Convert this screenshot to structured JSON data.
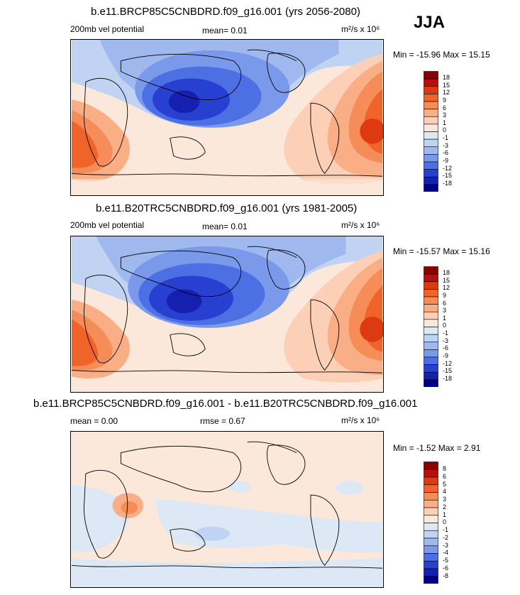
{
  "season": "JJA",
  "panels": [
    {
      "title": "b.e11.BRCP85C5CNBDRD.f09_g16.001 (yrs 2056-2080)",
      "left_label": "200mb vel potential",
      "mean_label": "mean=  0.01",
      "units": "m²/s x 10⁶",
      "minmax": "Min = -15.96 Max =  15.15",
      "colorbar": {
        "labels": [
          "18",
          "15",
          "12",
          "9",
          "6",
          "3",
          "1",
          "0",
          "-1",
          "-3",
          "-6",
          "-9",
          "-12",
          "-15",
          "-18"
        ],
        "colors": [
          "#8b0000",
          "#b50f0f",
          "#dd3a12",
          "#f0642a",
          "#f68c57",
          "#f9ae85",
          "#fbd0b7",
          "#fbe8da",
          "#dde8f6",
          "#c0d3f2",
          "#9fb8ee",
          "#7a99ea",
          "#4d6fe4",
          "#2740d2",
          "#1520b0",
          "#000080"
        ]
      }
    },
    {
      "title": "b.e11.B20TRC5CNBDRD.f09_g16.001 (yrs 1981-2005)",
      "left_label": "200mb vel potential",
      "mean_label": "mean=  0.01",
      "units": "m²/s x 10⁶",
      "minmax": "Min = -15.57 Max =  15.16",
      "colorbar": {
        "labels": [
          "18",
          "15",
          "12",
          "9",
          "6",
          "3",
          "1",
          "0",
          "-1",
          "-3",
          "-6",
          "-9",
          "-12",
          "-15",
          "-18"
        ],
        "colors": [
          "#8b0000",
          "#b50f0f",
          "#dd3a12",
          "#f0642a",
          "#f68c57",
          "#f9ae85",
          "#fbd0b7",
          "#fbe8da",
          "#dde8f6",
          "#c0d3f2",
          "#9fb8ee",
          "#7a99ea",
          "#4d6fe4",
          "#2740d2",
          "#1520b0",
          "#000080"
        ]
      }
    },
    {
      "title": "b.e11.BRCP85C5CNBDRD.f09_g16.001 - b.e11.B20TRC5CNBDRD.f09_g16.001",
      "left_label": "mean =  0.00",
      "mean_label": "rmse =  0.67",
      "units": "m²/s x 10⁶",
      "minmax": "Min = -1.52 Max =  2.91",
      "colorbar": {
        "labels": [
          "8",
          "6",
          "5",
          "4",
          "3",
          "2",
          "1",
          "0",
          "-1",
          "-2",
          "-3",
          "-4",
          "-5",
          "-6",
          "-8"
        ],
        "colors": [
          "#8b0000",
          "#b50f0f",
          "#dd3a12",
          "#f0642a",
          "#f68c57",
          "#f9ae85",
          "#fbd0b7",
          "#fbe8da",
          "#dde8f6",
          "#c0d3f2",
          "#9fb8ee",
          "#7a99ea",
          "#4d6fe4",
          "#2740d2",
          "#1520b0",
          "#000080"
        ]
      }
    }
  ]
}
